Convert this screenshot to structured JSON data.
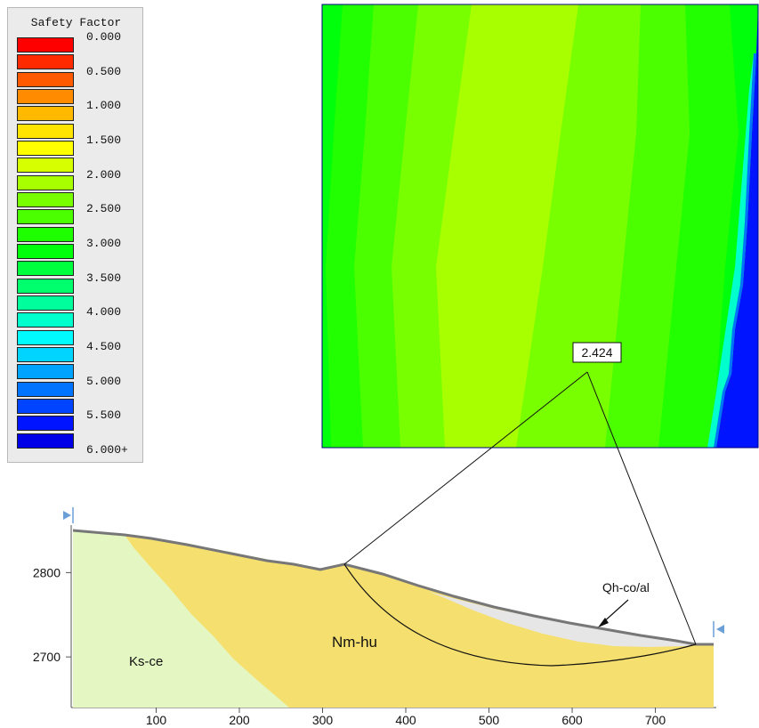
{
  "legend": {
    "title": "Safety Factor",
    "labels": [
      "0.000",
      "0.500",
      "1.000",
      "1.500",
      "2.000",
      "2.500",
      "3.000",
      "3.500",
      "4.000",
      "4.500",
      "5.000",
      "5.500",
      "6.000+"
    ],
    "colors": [
      "#ff0000",
      "#ff2a00",
      "#ff5a00",
      "#ff8c00",
      "#ffba00",
      "#ffe400",
      "#ffff00",
      "#d6ff00",
      "#a8ff00",
      "#78ff00",
      "#4cff00",
      "#1eff00",
      "#00ff0a",
      "#00ff3c",
      "#00ff6c",
      "#00ff9c",
      "#00ffcc",
      "#00fbff",
      "#00d4ff",
      "#00a4ff",
      "#0074ff",
      "#0044ff",
      "#0014ff",
      "#0000e8"
    ]
  },
  "annotations": {
    "min_sf": "2.424",
    "materials": [
      "Ks-ce",
      "Nm-hu",
      "Qh-co/al"
    ]
  },
  "chart_data": {
    "type": "area",
    "title": "",
    "xlabel": "",
    "ylabel": "",
    "xlim": [
      0,
      770
    ],
    "ylim": [
      2640,
      2850
    ],
    "x_ticks": [
      "100",
      "200",
      "300",
      "400",
      "500",
      "600",
      "700"
    ],
    "y_ticks": [
      "2800",
      "2700"
    ],
    "series": [
      {
        "name": "Ground surface",
        "x": [
          0,
          60,
          100,
          160,
          220,
          270,
          320,
          360,
          410,
          450,
          510,
          560,
          610,
          660,
          700,
          745,
          770
        ],
        "y": [
          2848,
          2845,
          2840,
          2833,
          2824,
          2815,
          2807,
          2797,
          2780,
          2768,
          2753,
          2742,
          2733,
          2725,
          2718,
          2711,
          2710
        ]
      },
      {
        "name": "Ks-ce",
        "x": [
          0,
          60,
          90,
          130,
          170,
          210,
          250,
          270
        ],
        "y": [
          2848,
          2846,
          2820,
          2790,
          2760,
          2730,
          2690,
          2640
        ]
      },
      {
        "name": "Qh-co/al",
        "x": [
          480,
          530,
          580,
          630,
          680,
          720,
          745
        ],
        "y": [
          2765,
          2748,
          2736,
          2728,
          2721,
          2714,
          2711
        ]
      },
      {
        "name": "Slip surface",
        "x": [
          324,
          380,
          440,
          500,
          560,
          610,
          660,
          710,
          745
        ],
        "y": [
          2805,
          2765,
          2725,
          2705,
          2692,
          2688,
          2690,
          2698,
          2711
        ]
      }
    ],
    "grid_center": {
      "label": "2.424",
      "sf_range": [
        2.0,
        6.0
      ]
    }
  }
}
